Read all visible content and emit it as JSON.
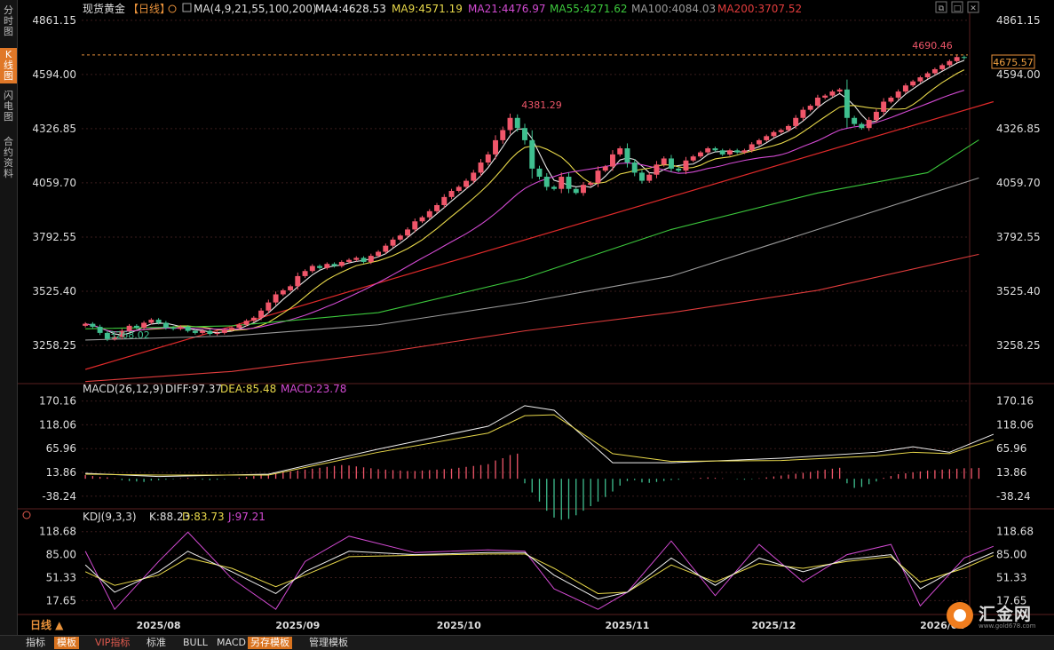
{
  "left_tabs": [
    {
      "label": "分时图",
      "active": false
    },
    {
      "label": "K线图",
      "active": true
    },
    {
      "label": "闪电图",
      "active": false
    },
    {
      "label": "合约资料",
      "active": false
    }
  ],
  "header": {
    "title": "现货黄金",
    "period": "【日线】",
    "ma_params": "MA(4,9,21,55,100,200)",
    "ma_values": [
      {
        "label": "MA4:4628.53",
        "color": "#e8e8e8"
      },
      {
        "label": "MA9:4571.19",
        "color": "#e8d84a"
      },
      {
        "label": "MA21:4476.97",
        "color": "#d24ad2"
      },
      {
        "label": "MA55:4271.62",
        "color": "#3cc83c"
      },
      {
        "label": "MA100:4084.03",
        "color": "#9a9a9a"
      },
      {
        "label": "MA200:3707.52",
        "color": "#e03c3c"
      }
    ]
  },
  "macd_header": {
    "name": "MACD(26,12,9)",
    "diff": "DIFF:97.37",
    "dea": "DEA:85.48",
    "macd": "MACD:23.78"
  },
  "kdj_header": {
    "name": "KDJ(9,3,3)",
    "k": "K:88.23",
    "d": "D:83.73",
    "j": "J:97.21"
  },
  "annotations": {
    "high_label": "4381.29",
    "low_label": "3268.02",
    "peak_label": "4690.46",
    "current_price": "4675.57"
  },
  "window_icons": [
    "restore-icon",
    "maximize-icon",
    "close-icon"
  ],
  "bottom_tabs": [
    {
      "label": "指标",
      "style": "normal"
    },
    {
      "label": "模板",
      "style": "sel"
    },
    {
      "label": "VIP指标",
      "style": "vip"
    },
    {
      "label": "标准",
      "style": "normal"
    },
    {
      "label": "BULL",
      "style": "normal"
    },
    {
      "label": "MACD",
      "style": "normal"
    },
    {
      "label": "另存模板",
      "style": "sel"
    },
    {
      "label": "管理模板",
      "style": "normal"
    }
  ],
  "period_selector": "日线 ▲",
  "logo": {
    "name": "汇金网",
    "url": "www.gold678.com"
  },
  "colors": {
    "up": "#f0566a",
    "down": "#3fbf8f",
    "grid": "#3a1c1c",
    "trend": "#e02a2a"
  },
  "chart_data": [
    {
      "type": "candlestick",
      "title": "现货黄金【日线】",
      "ylim": [
        3070,
        4900
      ],
      "y_ticks": [
        "4861.15",
        "4594.00",
        "4326.85",
        "4059.70",
        "3792.55",
        "3525.40",
        "3258.25"
      ],
      "x_tick_labels": [
        "2025/08",
        "2025/09",
        "2025/10",
        "2025/11",
        "2025/12",
        "2026/01"
      ],
      "x_tick_index": [
        10,
        29,
        51,
        74,
        94,
        117
      ],
      "closes": [
        3365,
        3350,
        3320,
        3290,
        3300,
        3330,
        3355,
        3345,
        3370,
        3385,
        3370,
        3345,
        3340,
        3350,
        3330,
        3320,
        3330,
        3315,
        3320,
        3335,
        3345,
        3360,
        3380,
        3395,
        3430,
        3470,
        3510,
        3530,
        3550,
        3600,
        3625,
        3650,
        3640,
        3660,
        3650,
        3670,
        3680,
        3690,
        3670,
        3700,
        3720,
        3750,
        3780,
        3800,
        3830,
        3870,
        3890,
        3920,
        3950,
        3990,
        4020,
        4040,
        4070,
        4110,
        4160,
        4200,
        4270,
        4320,
        4380,
        4330,
        4270,
        4130,
        4090,
        4040,
        4030,
        4090,
        4030,
        4010,
        4050,
        4060,
        4120,
        4140,
        4200,
        4230,
        4160,
        4110,
        4070,
        4100,
        4150,
        4180,
        4130,
        4120,
        4170,
        4190,
        4210,
        4230,
        4220,
        4200,
        4220,
        4210,
        4220,
        4250,
        4270,
        4290,
        4310,
        4320,
        4340,
        4380,
        4420,
        4440,
        4480,
        4490,
        4510,
        4520,
        4380,
        4350,
        4330,
        4370,
        4410,
        4460,
        4480,
        4510,
        4540,
        4560,
        4580,
        4600,
        4620,
        4640,
        4660,
        4680,
        4675.57
      ],
      "ma_series": [
        {
          "name": "MA4",
          "color": "#e8e8e8",
          "period": 4
        },
        {
          "name": "MA9",
          "color": "#e8d84a",
          "period": 9
        },
        {
          "name": "MA21",
          "color": "#d24ad2",
          "period": 21
        },
        {
          "name": "MA55",
          "color": "#3cc83c",
          "points": [
            [
              0,
              3340
            ],
            [
              20,
              3355
            ],
            [
              40,
              3420
            ],
            [
              60,
              3590
            ],
            [
              80,
              3830
            ],
            [
              100,
              4010
            ],
            [
              115,
              4110
            ],
            [
              122,
              4271.62
            ]
          ]
        },
        {
          "name": "MA100",
          "color": "#9a9a9a",
          "points": [
            [
              0,
              3285
            ],
            [
              20,
              3305
            ],
            [
              40,
              3360
            ],
            [
              60,
              3470
            ],
            [
              80,
              3600
            ],
            [
              100,
              3830
            ],
            [
              122,
              4084.03
            ]
          ]
        },
        {
          "name": "MA200",
          "color": "#e03c3c",
          "points": [
            [
              0,
              3080
            ],
            [
              20,
              3130
            ],
            [
              40,
              3220
            ],
            [
              60,
              3330
            ],
            [
              80,
              3420
            ],
            [
              100,
              3530
            ],
            [
              122,
              3707.52
            ]
          ]
        }
      ],
      "trendline": [
        [
          0,
          3140
        ],
        [
          124,
          4460
        ]
      ]
    },
    {
      "type": "bar",
      "title": "MACD(26,12,9)",
      "ylim": [
        -60,
        185
      ],
      "y_ticks": [
        "170.16",
        "118.06",
        "65.96",
        "13.86",
        "-38.24"
      ],
      "diff": [
        [
          0,
          12
        ],
        [
          10,
          5
        ],
        [
          25,
          10
        ],
        [
          40,
          65
        ],
        [
          55,
          115
        ],
        [
          60,
          160
        ],
        [
          64,
          150
        ],
        [
          72,
          35
        ],
        [
          80,
          35
        ],
        [
          95,
          45
        ],
        [
          108,
          58
        ],
        [
          113,
          70
        ],
        [
          118,
          58
        ],
        [
          124,
          97.37
        ]
      ],
      "dea": [
        [
          0,
          10
        ],
        [
          10,
          8
        ],
        [
          25,
          8
        ],
        [
          40,
          58
        ],
        [
          55,
          100
        ],
        [
          60,
          138
        ],
        [
          64,
          140
        ],
        [
          72,
          55
        ],
        [
          80,
          38
        ],
        [
          95,
          40
        ],
        [
          108,
          50
        ],
        [
          113,
          58
        ],
        [
          118,
          55
        ],
        [
          124,
          85.48
        ]
      ],
      "hist": [
        8,
        6,
        4,
        3,
        1,
        -3,
        -5,
        -6,
        -7,
        -4,
        -3,
        -2,
        -1,
        1,
        2,
        -1,
        -2,
        -3,
        -2,
        -1,
        0,
        2,
        4,
        6,
        8,
        10,
        12,
        14,
        16,
        18,
        20,
        22,
        24,
        26,
        28,
        30,
        29,
        27,
        25,
        23,
        21,
        20,
        19,
        18,
        17,
        17,
        18,
        19,
        20,
        21,
        22,
        24,
        26,
        28,
        30,
        32,
        40,
        45,
        52,
        55,
        -10,
        -30,
        -50,
        -70,
        -85,
        -90,
        -88,
        -80,
        -70,
        -60,
        -50,
        -40,
        -28,
        -15,
        -5,
        -3,
        -8,
        -9,
        -7,
        -5,
        -3,
        -2,
        0,
        1,
        2,
        3,
        2,
        1,
        0,
        -1,
        -2,
        -1,
        1,
        3,
        5,
        7,
        9,
        11,
        13,
        15,
        18,
        20,
        22,
        24,
        -10,
        -20,
        -18,
        -12,
        -6,
        2,
        6,
        10,
        12,
        14,
        16,
        18,
        19,
        20,
        21,
        22,
        23,
        23,
        23.78
      ]
    },
    {
      "type": "line",
      "title": "KDJ(9,3,3)",
      "ylim": [
        0,
        130
      ],
      "y_ticks": [
        "118.68",
        "85.00",
        "51.33",
        "17.65"
      ],
      "k": [
        [
          0,
          70
        ],
        [
          4,
          30
        ],
        [
          10,
          60
        ],
        [
          14,
          90
        ],
        [
          20,
          60
        ],
        [
          26,
          28
        ],
        [
          30,
          60
        ],
        [
          36,
          90
        ],
        [
          45,
          85
        ],
        [
          55,
          88
        ],
        [
          60,
          88
        ],
        [
          64,
          55
        ],
        [
          70,
          20
        ],
        [
          74,
          30
        ],
        [
          80,
          80
        ],
        [
          86,
          40
        ],
        [
          92,
          80
        ],
        [
          98,
          60
        ],
        [
          104,
          78
        ],
        [
          110,
          85
        ],
        [
          114,
          35
        ],
        [
          120,
          70
        ],
        [
          124,
          88.23
        ]
      ],
      "d": [
        [
          0,
          60
        ],
        [
          4,
          40
        ],
        [
          10,
          55
        ],
        [
          14,
          80
        ],
        [
          20,
          65
        ],
        [
          26,
          38
        ],
        [
          30,
          55
        ],
        [
          36,
          82
        ],
        [
          45,
          84
        ],
        [
          55,
          86
        ],
        [
          60,
          86
        ],
        [
          64,
          65
        ],
        [
          70,
          28
        ],
        [
          74,
          30
        ],
        [
          80,
          70
        ],
        [
          86,
          45
        ],
        [
          92,
          72
        ],
        [
          98,
          65
        ],
        [
          104,
          75
        ],
        [
          110,
          82
        ],
        [
          114,
          45
        ],
        [
          120,
          65
        ],
        [
          124,
          83.73
        ]
      ],
      "j": [
        [
          0,
          90
        ],
        [
          4,
          5
        ],
        [
          10,
          75
        ],
        [
          14,
          118
        ],
        [
          20,
          50
        ],
        [
          26,
          5
        ],
        [
          30,
          75
        ],
        [
          36,
          112
        ],
        [
          45,
          88
        ],
        [
          55,
          92
        ],
        [
          60,
          90
        ],
        [
          64,
          35
        ],
        [
          70,
          5
        ],
        [
          74,
          30
        ],
        [
          80,
          105
        ],
        [
          86,
          25
        ],
        [
          92,
          100
        ],
        [
          98,
          45
        ],
        [
          104,
          85
        ],
        [
          110,
          100
        ],
        [
          114,
          10
        ],
        [
          120,
          80
        ],
        [
          124,
          97.21
        ]
      ]
    }
  ]
}
